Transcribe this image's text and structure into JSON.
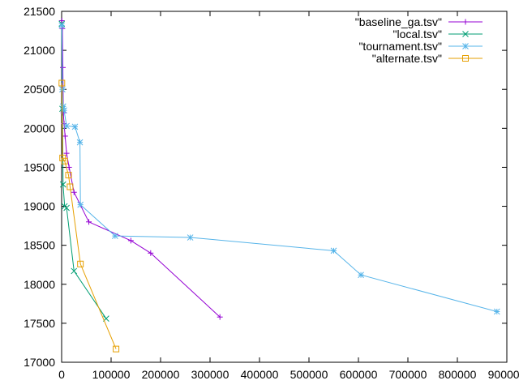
{
  "chart_data": {
    "type": "line",
    "title": "",
    "xlabel": "",
    "ylabel": "",
    "xlim": [
      0,
      900000
    ],
    "ylim": [
      17000,
      21500
    ],
    "x_ticks": [
      0,
      100000,
      200000,
      300000,
      400000,
      500000,
      600000,
      700000,
      800000,
      900000
    ],
    "x_tick_labels": [
      "0",
      "100000",
      "200000",
      "300000",
      "400000",
      "500000",
      "600000",
      "700000",
      "800000",
      "900000"
    ],
    "y_ticks": [
      17000,
      17500,
      18000,
      18500,
      19000,
      19500,
      20000,
      20500,
      21000,
      21500
    ],
    "y_tick_labels": [
      "17000",
      "17500",
      "18000",
      "18500",
      "19000",
      "19500",
      "20000",
      "20500",
      "21000",
      "21500"
    ],
    "legend_position": "top-right",
    "series": [
      {
        "name": "\"baseline_ga.tsv\"",
        "color": "#9400d3",
        "marker": "plus",
        "x": [
          500,
          1500,
          2500,
          3500,
          5000,
          7000,
          10000,
          15000,
          25000,
          55000,
          140000,
          180000,
          320000
        ],
        "y": [
          21380,
          21280,
          20780,
          20200,
          20060,
          19900,
          19680,
          19500,
          19180,
          18800,
          18560,
          18400,
          17580
        ]
      },
      {
        "name": "\"local.tsv\"",
        "color": "#009e73",
        "marker": "x",
        "x": [
          300,
          1500,
          3000,
          6000,
          10000,
          25000,
          90000
        ],
        "y": [
          21340,
          20250,
          19280,
          19000,
          18980,
          18170,
          17560
        ]
      },
      {
        "name": "\"tournament.tsv\"",
        "color": "#56b4e9",
        "marker": "star",
        "x": [
          300,
          1500,
          3000,
          5000,
          10000,
          27000,
          37000,
          38000,
          108000,
          260000,
          550000,
          605000,
          880000
        ],
        "y": [
          21320,
          20500,
          20280,
          20230,
          20030,
          20020,
          19820,
          19020,
          18620,
          18600,
          18430,
          18120,
          17650
        ]
      },
      {
        "name": "\"alternate.tsv\"",
        "color": "#e69f00",
        "marker": "square",
        "x": [
          500,
          2000,
          6000,
          14000,
          17000,
          38000,
          110000
        ],
        "y": [
          20580,
          19620,
          19580,
          19400,
          19250,
          18260,
          17170
        ]
      }
    ]
  }
}
